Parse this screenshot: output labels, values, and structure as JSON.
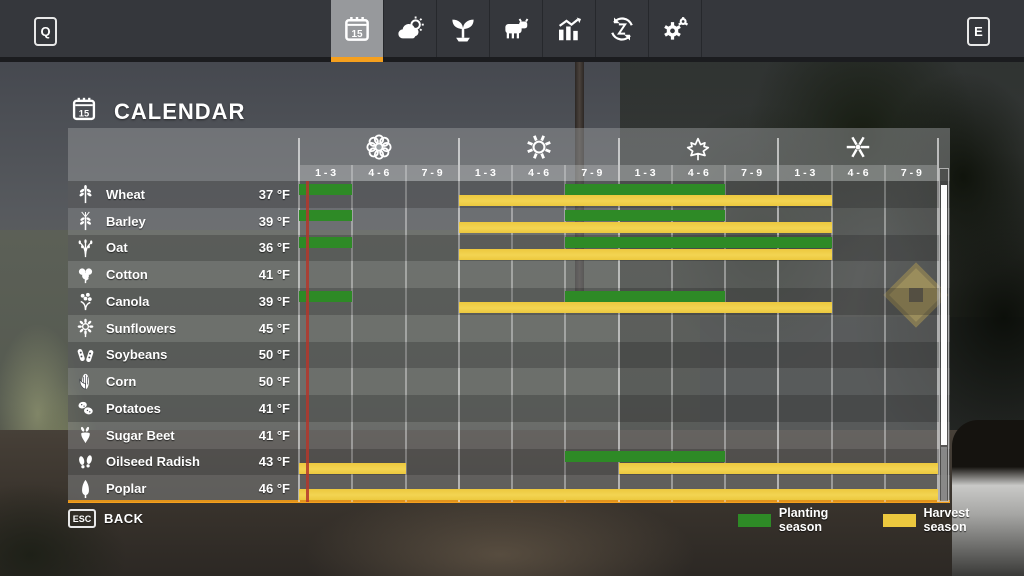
{
  "hud": {
    "left_key": "Q",
    "right_key": "E"
  },
  "toolbar": {
    "tabs": [
      {
        "id": "calendar",
        "icon": "calendar-icon",
        "selected": true
      },
      {
        "id": "weather",
        "icon": "weather-icon",
        "selected": false
      },
      {
        "id": "crops",
        "icon": "crops-icon",
        "selected": false
      },
      {
        "id": "animals",
        "icon": "animals-icon",
        "selected": false
      },
      {
        "id": "statistics",
        "icon": "statistics-icon",
        "selected": false
      },
      {
        "id": "finances",
        "icon": "finances-icon",
        "selected": false
      },
      {
        "id": "settings",
        "icon": "settings-icon",
        "selected": false
      }
    ]
  },
  "page": {
    "title": "CALENDAR",
    "calendar_day": "15"
  },
  "seasons": [
    {
      "name": "spring",
      "icon": "flower-icon"
    },
    {
      "name": "summer",
      "icon": "sun-icon"
    },
    {
      "name": "autumn",
      "icon": "maple-leaf-icon"
    },
    {
      "name": "winter",
      "icon": "snowflake-icon"
    }
  ],
  "month_labels": [
    "1 - 3",
    "4 - 6",
    "7 - 9",
    "1 - 3",
    "4 - 6",
    "7 - 9",
    "1 - 3",
    "4 - 6",
    "7 - 9",
    "1 - 3",
    "4 - 6",
    "7 - 9"
  ],
  "legend": [
    {
      "label": "Planting season",
      "color": "#2e8a26"
    },
    {
      "label": "Harvest season",
      "color": "#ecc83e"
    }
  ],
  "footer": {
    "esc_key": "ESC",
    "back_label": "BACK"
  },
  "colors": {
    "planting": "#2e8a26",
    "harvest": "#ecc83e",
    "accent_orange": "#f5a01e",
    "current_day_line": "#b3372b"
  },
  "chart_data": {
    "type": "table",
    "title": "CALENDAR",
    "column_labels": [
      "1 - 3",
      "4 - 6",
      "7 - 9",
      "1 - 3",
      "4 - 6",
      "7 - 9",
      "1 - 3",
      "4 - 6",
      "7 - 9",
      "1 - 3",
      "4 - 6",
      "7 - 9"
    ],
    "season_names": [
      "spring",
      "summer",
      "autumn",
      "winter"
    ],
    "legend_entries": [
      "Planting season",
      "Harvest season"
    ],
    "current_day_column": 1,
    "crops": [
      {
        "name": "Wheat",
        "temp": "37 °F",
        "icon": "wheat-icon",
        "planting": [
          [
            1,
            1
          ],
          [
            6,
            8
          ]
        ],
        "harvest": [
          [
            4,
            10
          ]
        ]
      },
      {
        "name": "Barley",
        "temp": "39 °F",
        "icon": "barley-icon",
        "planting": [
          [
            1,
            1
          ],
          [
            6,
            8
          ]
        ],
        "harvest": [
          [
            4,
            10
          ]
        ]
      },
      {
        "name": "Oat",
        "temp": "36 °F",
        "icon": "oat-icon",
        "planting": [
          [
            1,
            1
          ],
          [
            6,
            10
          ]
        ],
        "harvest": [
          [
            4,
            10
          ]
        ]
      },
      {
        "name": "Cotton",
        "temp": "41 °F",
        "icon": "cotton-icon",
        "planting": [],
        "harvest": []
      },
      {
        "name": "Canola",
        "temp": "39 °F",
        "icon": "canola-icon",
        "planting": [
          [
            1,
            1
          ],
          [
            6,
            8
          ]
        ],
        "harvest": [
          [
            4,
            10
          ]
        ]
      },
      {
        "name": "Sunflowers",
        "temp": "45 °F",
        "icon": "sunflower-icon",
        "planting": [],
        "harvest": []
      },
      {
        "name": "Soybeans",
        "temp": "50 °F",
        "icon": "soybeans-icon",
        "planting": [],
        "harvest": []
      },
      {
        "name": "Corn",
        "temp": "50 °F",
        "icon": "corn-icon",
        "planting": [],
        "harvest": []
      },
      {
        "name": "Potatoes",
        "temp": "41 °F",
        "icon": "potatoes-icon",
        "planting": [],
        "harvest": []
      },
      {
        "name": "Sugar Beet",
        "temp": "41 °F",
        "icon": "sugar-beet-icon",
        "planting": [],
        "harvest": []
      },
      {
        "name": "Oilseed Radish",
        "temp": "43 °F",
        "icon": "oilseed-radish-icon",
        "planting": [
          [
            6,
            8
          ]
        ],
        "harvest": [
          [
            1,
            2
          ],
          [
            7,
            12
          ]
        ]
      },
      {
        "name": "Poplar",
        "temp": "46 °F",
        "icon": "poplar-icon",
        "planting": [],
        "harvest": [
          [
            1,
            12
          ]
        ]
      }
    ]
  }
}
